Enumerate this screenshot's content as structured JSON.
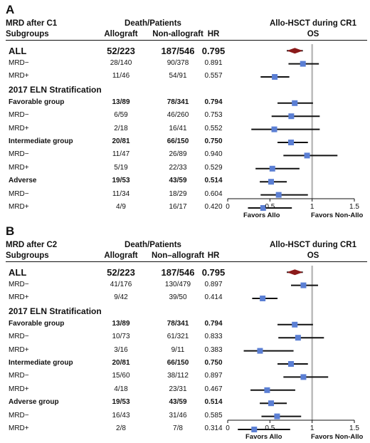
{
  "panels": [
    {
      "letter": "A",
      "header": {
        "title_left": "MRD after C1",
        "group_header": "Death/Patients",
        "right_title": "Allo-HSCT during CR1",
        "subgroups_label": "Subgroups",
        "col_allo": "Allograft",
        "col_nonallo": "Non-allograft",
        "col_hr": "HR",
        "col_os": "OS"
      },
      "footer": {
        "favors_allo": "Favors Allo",
        "favors_nonallo": "Favors Non-Allo"
      },
      "chart_data": {
        "type": "forest",
        "xlim": [
          0,
          1.5
        ],
        "xticks": [
          "0",
          "0.5",
          "1",
          "1.5"
        ],
        "reference_line": 1,
        "rows": [
          {
            "label": "ALL",
            "allo": "52/223",
            "nonallo": "187/546",
            "hr": 0.795,
            "hr_text": "0.795",
            "lo": 0.7,
            "hi": 0.89,
            "kind": "overall"
          },
          {
            "label": "MRD−",
            "allo": "28/140",
            "nonallo": "90/378",
            "hr": 0.891,
            "hr_text": "0.891",
            "lo": 0.72,
            "hi": 1.08,
            "kind": "sub"
          },
          {
            "label": "MRD+",
            "allo": "11/46",
            "nonallo": "54/91",
            "hr": 0.557,
            "hr_text": "0.557",
            "lo": 0.39,
            "hi": 0.73,
            "kind": "sub"
          },
          {
            "label": "2017 ELN Stratification",
            "kind": "section"
          },
          {
            "label": "Favorable group",
            "allo": "13/89",
            "nonallo": "78/341",
            "hr": 0.794,
            "hr_text": "0.794",
            "lo": 0.59,
            "hi": 1.01,
            "kind": "group"
          },
          {
            "label": "MRD−",
            "allo": "6/59",
            "nonallo": "46/260",
            "hr": 0.753,
            "hr_text": "0.753",
            "lo": 0.52,
            "hi": 1.09,
            "kind": "sub"
          },
          {
            "label": "MRD+",
            "allo": "2/18",
            "nonallo": "16/41",
            "hr": 0.552,
            "hr_text": "0.552",
            "lo": 0.28,
            "hi": 1.09,
            "kind": "sub"
          },
          {
            "label": "Intermediate group",
            "allo": "20/81",
            "nonallo": "66/150",
            "hr": 0.75,
            "hr_text": "0.750",
            "lo": 0.59,
            "hi": 0.95,
            "kind": "group"
          },
          {
            "label": "MRD−",
            "allo": "11/47",
            "nonallo": "26/89",
            "hr": 0.94,
            "hr_text": "0.940",
            "lo": 0.66,
            "hi": 1.3,
            "kind": "sub"
          },
          {
            "label": "MRD+",
            "allo": "5/19",
            "nonallo": "22/33",
            "hr": 0.529,
            "hr_text": "0.529",
            "lo": 0.33,
            "hi": 0.85,
            "kind": "sub"
          },
          {
            "label": "Adverse",
            "allo": "19/53",
            "nonallo": "43/59",
            "hr": 0.514,
            "hr_text": "0.514",
            "lo": 0.38,
            "hi": 0.7,
            "kind": "group"
          },
          {
            "label": "MRD−",
            "allo": "11/34",
            "nonallo": "18/29",
            "hr": 0.604,
            "hr_text": "0.604",
            "lo": 0.39,
            "hi": 0.95,
            "kind": "sub"
          },
          {
            "label": "MRD+",
            "allo": "4/9",
            "nonallo": "16/17",
            "hr": 0.42,
            "hr_text": "0.420",
            "lo": 0.24,
            "hi": 0.76,
            "kind": "sub"
          }
        ]
      }
    },
    {
      "letter": "B",
      "header": {
        "title_left": "MRD after C2",
        "group_header": "Death/Patients",
        "right_title": "Allo-HSCT during CR1",
        "subgroups_label": "Subgroups",
        "col_allo": "Allograft",
        "col_nonallo": "Non–allograft",
        "col_hr": "HR",
        "col_os": "OS"
      },
      "footer": {
        "favors_allo": "Favors Allo",
        "favors_nonallo": "Favors Non-Allo"
      },
      "chart_data": {
        "type": "forest",
        "xlim": [
          0,
          1.5
        ],
        "xticks": [
          "0",
          "0.5",
          "1",
          "1.5"
        ],
        "reference_line": 1,
        "rows": [
          {
            "label": "ALL",
            "allo": "52/223",
            "nonallo": "187/546",
            "hr": 0.795,
            "hr_text": "0.795",
            "lo": 0.7,
            "hi": 0.89,
            "kind": "overall"
          },
          {
            "label": "MRD−",
            "allo": "41/176",
            "nonallo": "130/479",
            "hr": 0.897,
            "hr_text": "0.897",
            "lo": 0.75,
            "hi": 1.07,
            "kind": "sub"
          },
          {
            "label": "MRD+",
            "allo": "9/42",
            "nonallo": "39/50",
            "hr": 0.414,
            "hr_text": "0.414",
            "lo": 0.29,
            "hi": 0.59,
            "kind": "sub"
          },
          {
            "label": "2017 ELN Stratification",
            "kind": "section"
          },
          {
            "label": "Favorable group",
            "allo": "13/89",
            "nonallo": "78/341",
            "hr": 0.794,
            "hr_text": "0.794",
            "lo": 0.59,
            "hi": 1.01,
            "kind": "group"
          },
          {
            "label": "MRD−",
            "allo": "10/73",
            "nonallo": "61/321",
            "hr": 0.833,
            "hr_text": "0.833",
            "lo": 0.6,
            "hi": 1.14,
            "kind": "sub"
          },
          {
            "label": "MRD+",
            "allo": "3/16",
            "nonallo": "9/11",
            "hr": 0.383,
            "hr_text": "0.383",
            "lo": 0.19,
            "hi": 0.78,
            "kind": "sub"
          },
          {
            "label": "Intermediate group",
            "allo": "20/81",
            "nonallo": "66/150",
            "hr": 0.75,
            "hr_text": "0.750",
            "lo": 0.59,
            "hi": 0.95,
            "kind": "group"
          },
          {
            "label": "MRD−",
            "allo": "15/60",
            "nonallo": "38/112",
            "hr": 0.897,
            "hr_text": "0.897",
            "lo": 0.66,
            "hi": 1.19,
            "kind": "sub"
          },
          {
            "label": "MRD+",
            "allo": "4/18",
            "nonallo": "23/31",
            "hr": 0.467,
            "hr_text": "0.467",
            "lo": 0.27,
            "hi": 0.8,
            "kind": "sub"
          },
          {
            "label": "Adverse group",
            "allo": "19/53",
            "nonallo": "43/59",
            "hr": 0.514,
            "hr_text": "0.514",
            "lo": 0.38,
            "hi": 0.7,
            "kind": "group"
          },
          {
            "label": "MRD−",
            "allo": "16/43",
            "nonallo": "31/46",
            "hr": 0.585,
            "hr_text": "0.585",
            "lo": 0.4,
            "hi": 0.87,
            "kind": "sub"
          },
          {
            "label": "MRD+",
            "allo": "2/8",
            "nonallo": "7/8",
            "hr": 0.314,
            "hr_text": "0.314",
            "lo": 0.12,
            "hi": 0.74,
            "kind": "sub"
          }
        ]
      }
    }
  ],
  "colors": {
    "square": "#5b7fd4",
    "diamond": "#8b1a1a",
    "refline": "#bbbbbb",
    "ci": "#111111"
  }
}
